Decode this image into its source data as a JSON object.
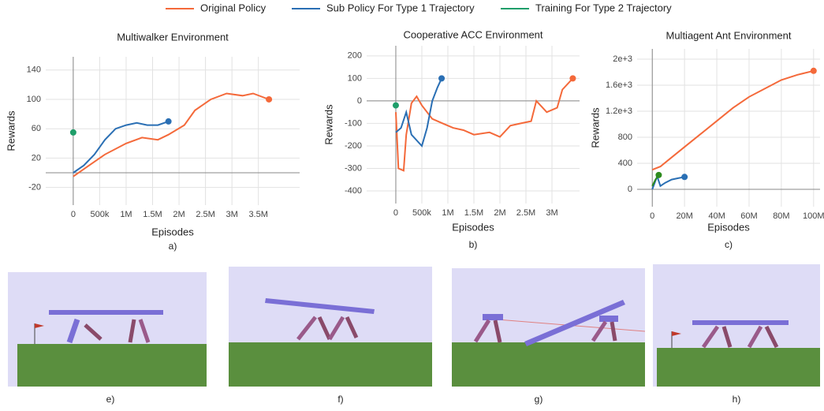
{
  "chart_data": [
    {
      "type": "line",
      "title": "Multiwalker Environment",
      "x_label": "Episodes",
      "y_label": "Rewards",
      "panel_label": "a)",
      "grid": true,
      "xlim": [
        -520000,
        4280000
      ],
      "ylim": [
        -44,
        158
      ],
      "xticks": [
        0,
        {
          "value": 500000,
          "label": "500k"
        },
        {
          "value": 1000000,
          "label": "1M"
        },
        {
          "value": 1500000,
          "label": "1.5M"
        },
        {
          "value": 2000000,
          "label": "2M"
        },
        {
          "value": 2500000,
          "label": "2.5M"
        },
        {
          "value": 3000000,
          "label": "3M"
        },
        {
          "value": 3500000,
          "label": "3.5M"
        }
      ],
      "yticks": [
        -20,
        20,
        60,
        100,
        140
      ],
      "series": [
        {
          "name": "Original Policy",
          "color": "#f4693a",
          "x": [
            0,
            300000,
            600000,
            1000000,
            1300000,
            1600000,
            1800000,
            2100000,
            2300000,
            2600000,
            2900000,
            3200000,
            3400000,
            3700000
          ],
          "values": [
            -5,
            10,
            25,
            40,
            48,
            45,
            52,
            65,
            85,
            100,
            108,
            105,
            108,
            100
          ]
        },
        {
          "name": "Sub Policy For Type 1 Trajectory",
          "color": "#2a6fb4",
          "x": [
            0,
            200000,
            400000,
            600000,
            800000,
            1000000,
            1200000,
            1400000,
            1600000,
            1800000
          ],
          "values": [
            0,
            10,
            25,
            45,
            60,
            65,
            68,
            65,
            65,
            70
          ]
        },
        {
          "name": "Training For Type 2 Trajectory",
          "color": "#1f9e6a",
          "x": [
            0
          ],
          "values": [
            55
          ]
        }
      ]
    },
    {
      "type": "line",
      "title": "Cooperative ACC Environment",
      "x_label": "Episodes",
      "y_label": "Rewards",
      "panel_label": "b)",
      "grid": true,
      "xlim": [
        -560000,
        3530000
      ],
      "ylim": [
        -456,
        245
      ],
      "xticks": [
        0,
        {
          "value": 500000,
          "label": "500k"
        },
        {
          "value": 1000000,
          "label": "1M"
        },
        {
          "value": 1500000,
          "label": "1.5M"
        },
        {
          "value": 2000000,
          "label": "2M"
        },
        {
          "value": 2500000,
          "label": "2.5M"
        },
        {
          "value": 3000000,
          "label": "3M"
        }
      ],
      "yticks": [
        -400,
        -300,
        -200,
        -100,
        0,
        100,
        200
      ],
      "series": [
        {
          "name": "Original Policy",
          "color": "#f4693a",
          "x": [
            0,
            50000,
            150000,
            200000,
            300000,
            400000,
            500000,
            700000,
            900000,
            1100000,
            1300000,
            1500000,
            1800000,
            2000000,
            2200000,
            2400000,
            2600000,
            2700000,
            2900000,
            3100000,
            3200000,
            3400000
          ],
          "values": [
            -50,
            -300,
            -310,
            -150,
            -10,
            20,
            -20,
            -80,
            -100,
            -120,
            -130,
            -150,
            -140,
            -160,
            -110,
            -100,
            -90,
            0,
            -50,
            -30,
            50,
            100
          ]
        },
        {
          "name": "Sub Policy For Type 1 Trajectory",
          "color": "#2a6fb4",
          "x": [
            0,
            100000,
            200000,
            300000,
            500000,
            600000,
            700000,
            800000,
            880000
          ],
          "values": [
            -140,
            -120,
            -50,
            -150,
            -200,
            -120,
            0,
            60,
            100
          ]
        },
        {
          "name": "Training For Type 2 Trajectory",
          "color": "#1f9e6a",
          "x": [
            0
          ],
          "values": [
            -20
          ]
        }
      ]
    },
    {
      "type": "line",
      "title": "Multiagent Ant Environment",
      "x_label": "Episodes",
      "y_label": "Rewards",
      "panel_label": "c)",
      "grid": true,
      "xlim": [
        -9400000,
        104000000
      ],
      "ylim": [
        -267,
        2157
      ],
      "xticks": [
        0,
        {
          "value": 20000000,
          "label": "20M"
        },
        {
          "value": 40000000,
          "label": "40M"
        },
        {
          "value": 60000000,
          "label": "60M"
        },
        {
          "value": 80000000,
          "label": "80M"
        },
        {
          "value": 100000000,
          "label": "100M"
        }
      ],
      "yticks": [
        0,
        400,
        800,
        {
          "value": 1200,
          "label": "1.2e+3"
        },
        {
          "value": 1600,
          "label": "1.6e+3"
        },
        {
          "value": 2000,
          "label": "2e+3"
        }
      ],
      "series": [
        {
          "name": "Original Policy",
          "color": "#f4693a",
          "x": [
            0,
            5000000,
            10000000,
            20000000,
            30000000,
            40000000,
            50000000,
            60000000,
            70000000,
            80000000,
            90000000,
            100000000
          ],
          "values": [
            300,
            350,
            450,
            650,
            850,
            1050,
            1250,
            1420,
            1550,
            1680,
            1760,
            1820
          ]
        },
        {
          "name": "Sub Policy For Type 1 Trajectory",
          "color": "#2a6fb4",
          "x": [
            0,
            3000000,
            5000000,
            8000000,
            12000000,
            16000000,
            20000000
          ],
          "values": [
            0,
            200,
            50,
            100,
            150,
            170,
            190
          ]
        },
        {
          "name": "Training For Type 2 Trajectory",
          "color": "#2e8b1e",
          "x": [
            0,
            2000000,
            4000000
          ],
          "values": [
            50,
            150,
            220
          ]
        }
      ]
    }
  ],
  "images": [
    {
      "label": "e)"
    },
    {
      "label": "f)"
    },
    {
      "label": "g)"
    },
    {
      "label": "h)"
    }
  ]
}
